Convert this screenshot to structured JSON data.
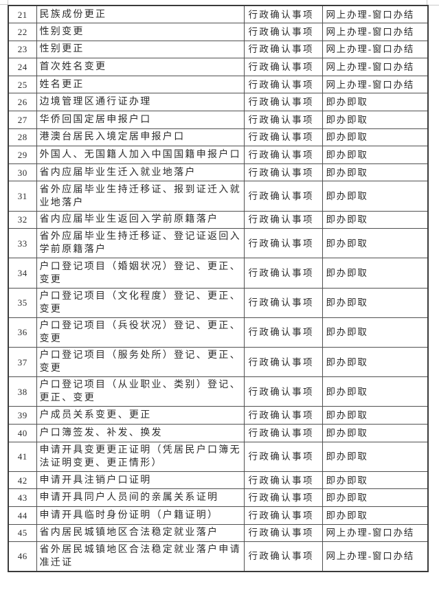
{
  "document": {
    "kind": "scanned-government-service-table"
  },
  "colors": {
    "background": "#ffffff",
    "outer_border": "#3a3a3a",
    "inner_border": "#4f4f4f",
    "text": "#2b2b2b",
    "faint_artifact_line": "#c9c9c9"
  },
  "table": {
    "rows": [
      {
        "no": "21",
        "name": "民族成份更正",
        "category": "行政确认事项",
        "method": "网上办理-窗口办结"
      },
      {
        "no": "22",
        "name": "性别变更",
        "category": "行政确认事项",
        "method": "网上办理-窗口办结"
      },
      {
        "no": "23",
        "name": "性别更正",
        "category": "行政确认事项",
        "method": "网上办理-窗口办结"
      },
      {
        "no": "24",
        "name": "首次姓名变更",
        "category": "行政确认事项",
        "method": "网上办理-窗口办结"
      },
      {
        "no": "25",
        "name": "姓名更正",
        "category": "行政确认事项",
        "method": "网上办理-窗口办结"
      },
      {
        "no": "26",
        "name": "边境管理区通行证办理",
        "category": "行政确认事项",
        "method": "即办即取"
      },
      {
        "no": "27",
        "name": "华侨回国定居申报户口",
        "category": "行政确认事项",
        "method": "即办即取"
      },
      {
        "no": "28",
        "name": "港澳台居民入境定居申报户口",
        "category": "行政确认事项",
        "method": "即办即取"
      },
      {
        "no": "29",
        "name": "外国人、无国籍人加入中国国籍申报户口",
        "category": "行政确认事项",
        "method": "即办即取"
      },
      {
        "no": "30",
        "name": "省内应届毕业生迁入就业地落户",
        "category": "行政确认事项",
        "method": "即办即取"
      },
      {
        "no": "31",
        "name": "省外应届毕业生持迁移证、报到证迁入就业地落户",
        "category": "行政确认事项",
        "method": "即办即取"
      },
      {
        "no": "32",
        "name": "省内应届毕业生返回入学前原籍落户",
        "category": "行政确认事项",
        "method": "即办即取"
      },
      {
        "no": "33",
        "name": "省外应届毕业生持迁移证、登记证返回入学前原籍落户",
        "category": "行政确认事项",
        "method": "即办即取"
      },
      {
        "no": "34",
        "name": "户口登记项目（婚姻状况）登记、更正、变更",
        "category": "行政确认事项",
        "method": "即办即取"
      },
      {
        "no": "35",
        "name": "户口登记项目（文化程度）登记、更正、变更",
        "category": "行政确认事项",
        "method": "即办即取"
      },
      {
        "no": "36",
        "name": "户口登记项目（兵役状况）登记、更正、变更",
        "category": "行政确认事项",
        "method": "即办即取"
      },
      {
        "no": "37",
        "name": "户口登记项目（服务处所）登记、更正、变更",
        "category": "行政确认事项",
        "method": "即办即取"
      },
      {
        "no": "38",
        "name": "户口登记项目（从业职业、类别）登记、更正、变更",
        "category": "行政确认事项",
        "method": "即办即取"
      },
      {
        "no": "39",
        "name": "户成员关系变更、更正",
        "category": "行政确认事项",
        "method": "即办即取"
      },
      {
        "no": "40",
        "name": "户口簿签发、补发、换发",
        "category": "行政确认事项",
        "method": "即办即取"
      },
      {
        "no": "41",
        "name": "申请开具变更更正证明（凭居民户口簿无法证明变更、更正情形）",
        "category": "行政确认事项",
        "method": "即办即取"
      },
      {
        "no": "42",
        "name": "申请开具注销户口证明",
        "category": "行政确认事项",
        "method": "即办即取"
      },
      {
        "no": "43",
        "name": "申请开具同户人员间的亲属关系证明",
        "category": "行政确认事项",
        "method": "即办即取"
      },
      {
        "no": "44",
        "name": "申请开具临时身份证明（户籍证明）",
        "category": "行政确认事项",
        "method": "即办即取"
      },
      {
        "no": "45",
        "name": "省内居民城镇地区合法稳定就业落户",
        "category": "行政确认事项",
        "method": "网上办理-窗口办结"
      },
      {
        "no": "46",
        "name": "省外居民城镇地区合法稳定就业落户申请准迁证",
        "category": "行政确认事项",
        "method": "网上办理-窗口办结"
      }
    ]
  }
}
